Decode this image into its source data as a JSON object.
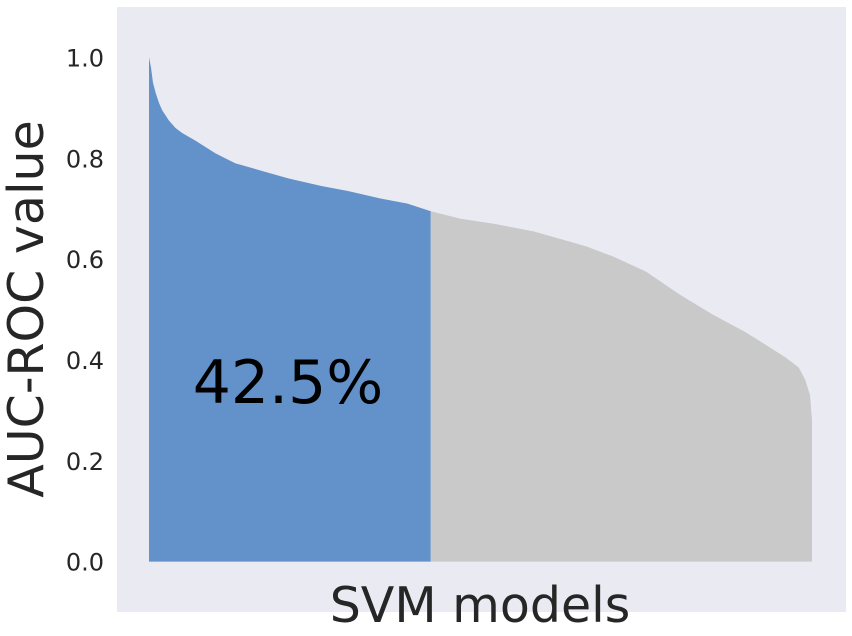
{
  "chart_data": {
    "type": "area",
    "xlabel": "SVM models",
    "ylabel": "AUC-ROC value",
    "ylim": [
      -0.1,
      1.1
    ],
    "yticks": [
      0.0,
      0.2,
      0.4,
      0.6,
      0.8,
      1.0
    ],
    "ytick_labels": [
      "0.0",
      "0.2",
      "0.4",
      "0.6",
      "0.8",
      "1.0"
    ],
    "xticks": [],
    "grid": false,
    "background_color": "#eaeaf2",
    "annotation": "42.5%",
    "threshold_fraction": 0.425,
    "sorted_descending": true,
    "series": [
      {
        "color": "#6391c9",
        "curve": [
          [
            0.0,
            1.0
          ],
          [
            0.003,
            0.98
          ],
          [
            0.006,
            0.95
          ],
          [
            0.01,
            0.93
          ],
          [
            0.015,
            0.91
          ],
          [
            0.02,
            0.895
          ],
          [
            0.03,
            0.875
          ],
          [
            0.04,
            0.86
          ],
          [
            0.05,
            0.85
          ],
          [
            0.07,
            0.835
          ],
          [
            0.1,
            0.81
          ],
          [
            0.13,
            0.79
          ],
          [
            0.17,
            0.775
          ],
          [
            0.21,
            0.76
          ],
          [
            0.26,
            0.745
          ],
          [
            0.3,
            0.735
          ],
          [
            0.35,
            0.72
          ],
          [
            0.39,
            0.71
          ],
          [
            0.425,
            0.695
          ]
        ]
      },
      {
        "color": "#c9c9c9",
        "curve": [
          [
            0.425,
            0.695
          ],
          [
            0.47,
            0.68
          ],
          [
            0.52,
            0.67
          ],
          [
            0.58,
            0.655
          ],
          [
            0.62,
            0.64
          ],
          [
            0.66,
            0.625
          ],
          [
            0.7,
            0.605
          ],
          [
            0.75,
            0.575
          ],
          [
            0.8,
            0.53
          ],
          [
            0.85,
            0.49
          ],
          [
            0.9,
            0.455
          ],
          [
            0.93,
            0.43
          ],
          [
            0.96,
            0.405
          ],
          [
            0.98,
            0.385
          ],
          [
            0.99,
            0.36
          ],
          [
            0.997,
            0.33
          ],
          [
            1.0,
            0.28
          ]
        ]
      }
    ]
  }
}
